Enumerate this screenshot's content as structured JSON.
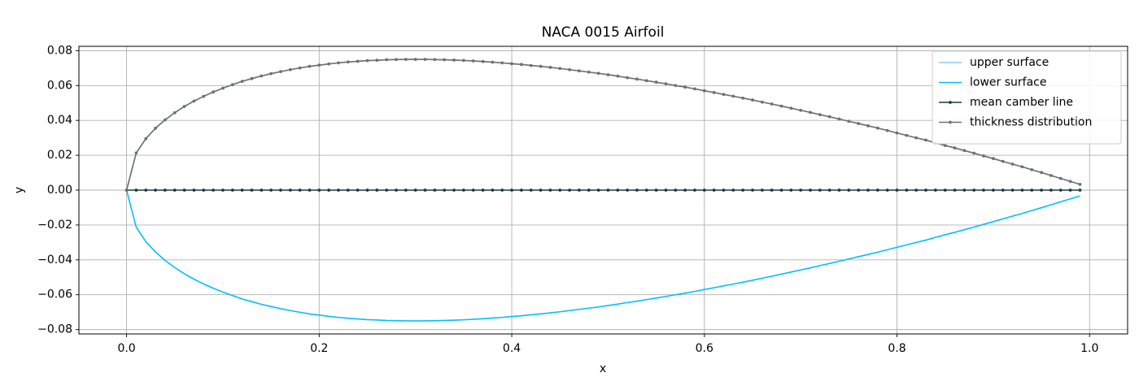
{
  "chart_data": {
    "type": "line",
    "title": "NACA 0015 Airfoil",
    "x_label": "x",
    "y_label": "y",
    "x": [
      0,
      0.01,
      0.02,
      0.03,
      0.04,
      0.05,
      0.06,
      0.07,
      0.08,
      0.09,
      0.1,
      0.11,
      0.12,
      0.13,
      0.14,
      0.15,
      0.16,
      0.17,
      0.18,
      0.19,
      0.2,
      0.21,
      0.22,
      0.23,
      0.24,
      0.25,
      0.26,
      0.27,
      0.28,
      0.29,
      0.3,
      0.31,
      0.32,
      0.33,
      0.34,
      0.35,
      0.36,
      0.37,
      0.38,
      0.39,
      0.4,
      0.41,
      0.42,
      0.43,
      0.44,
      0.45,
      0.46,
      0.47,
      0.48,
      0.49,
      0.5,
      0.51,
      0.52,
      0.53,
      0.54,
      0.55,
      0.56,
      0.57,
      0.58,
      0.59,
      0.6,
      0.61,
      0.62,
      0.63,
      0.64,
      0.65,
      0.66,
      0.67,
      0.68,
      0.69,
      0.7,
      0.71,
      0.72,
      0.73,
      0.74,
      0.75,
      0.76,
      0.77,
      0.78,
      0.79,
      0.8,
      0.81,
      0.82,
      0.83,
      0.84,
      0.85,
      0.86,
      0.87,
      0.88,
      0.89,
      0.9,
      0.91,
      0.92,
      0.93,
      0.94,
      0.95,
      0.96,
      0.97,
      0.98,
      0.99
    ],
    "series": [
      {
        "name": "upper surface",
        "color": "#87cefa",
        "marker": false,
        "values": [
          0,
          0.0213,
          0.0295,
          0.0355,
          0.0403,
          0.0444,
          0.048,
          0.0511,
          0.0538,
          0.0563,
          0.0585,
          0.0605,
          0.0624,
          0.064,
          0.0655,
          0.0668,
          0.068,
          0.0691,
          0.0701,
          0.071,
          0.0717,
          0.0724,
          0.073,
          0.0735,
          0.0739,
          0.0743,
          0.0745,
          0.0748,
          0.0749,
          0.075,
          0.075,
          0.075,
          0.0749,
          0.0748,
          0.0746,
          0.0744,
          0.0741,
          0.0738,
          0.0734,
          0.073,
          0.0725,
          0.0721,
          0.0715,
          0.071,
          0.0704,
          0.0698,
          0.0691,
          0.0684,
          0.0677,
          0.067,
          0.0662,
          0.0654,
          0.0645,
          0.0637,
          0.0628,
          0.0619,
          0.061,
          0.06,
          0.0591,
          0.0581,
          0.057,
          0.056,
          0.0549,
          0.0539,
          0.0528,
          0.0517,
          0.0505,
          0.0494,
          0.0482,
          0.047,
          0.0458,
          0.0446,
          0.0433,
          0.0421,
          0.0408,
          0.0395,
          0.0382,
          0.0369,
          0.0356,
          0.0342,
          0.0328,
          0.0314,
          0.03,
          0.0287,
          0.0271,
          0.0256,
          0.0242,
          0.0227,
          0.0212,
          0.0196,
          0.0181,
          0.0165,
          0.0149,
          0.0134,
          0.0117,
          0.0101,
          0.0084,
          0.0067,
          0.005,
          0.0033
        ]
      },
      {
        "name": "lower surface",
        "color": "#00bfff",
        "marker": false,
        "values": [
          0,
          -0.0213,
          -0.0295,
          -0.0355,
          -0.0403,
          -0.0444,
          -0.048,
          -0.0511,
          -0.0538,
          -0.0563,
          -0.0585,
          -0.0605,
          -0.0624,
          -0.064,
          -0.0655,
          -0.0668,
          -0.068,
          -0.0691,
          -0.0701,
          -0.071,
          -0.0717,
          -0.0724,
          -0.073,
          -0.0735,
          -0.0739,
          -0.0743,
          -0.0745,
          -0.0748,
          -0.0749,
          -0.075,
          -0.075,
          -0.075,
          -0.0749,
          -0.0748,
          -0.0746,
          -0.0744,
          -0.0741,
          -0.0738,
          -0.0734,
          -0.073,
          -0.0725,
          -0.0721,
          -0.0715,
          -0.071,
          -0.0704,
          -0.0698,
          -0.0691,
          -0.0684,
          -0.0677,
          -0.067,
          -0.0662,
          -0.0654,
          -0.0645,
          -0.0637,
          -0.0628,
          -0.0619,
          -0.061,
          -0.06,
          -0.0591,
          -0.0581,
          -0.057,
          -0.056,
          -0.0549,
          -0.0539,
          -0.0528,
          -0.0517,
          -0.0505,
          -0.0494,
          -0.0482,
          -0.047,
          -0.0458,
          -0.0446,
          -0.0433,
          -0.0421,
          -0.0408,
          -0.0395,
          -0.0382,
          -0.0369,
          -0.0356,
          -0.0342,
          -0.0328,
          -0.0314,
          -0.03,
          -0.0287,
          -0.0271,
          -0.0256,
          -0.0242,
          -0.0227,
          -0.0212,
          -0.0196,
          -0.0181,
          -0.0165,
          -0.0149,
          -0.0134,
          -0.0117,
          -0.0101,
          -0.0084,
          -0.0067,
          -0.005,
          -0.0033
        ]
      },
      {
        "name": "mean camber line",
        "color": "#1c3a42",
        "marker": true,
        "values": [
          0,
          0,
          0,
          0,
          0,
          0,
          0,
          0,
          0,
          0,
          0,
          0,
          0,
          0,
          0,
          0,
          0,
          0,
          0,
          0,
          0,
          0,
          0,
          0,
          0,
          0,
          0,
          0,
          0,
          0,
          0,
          0,
          0,
          0,
          0,
          0,
          0,
          0,
          0,
          0,
          0,
          0,
          0,
          0,
          0,
          0,
          0,
          0,
          0,
          0,
          0,
          0,
          0,
          0,
          0,
          0,
          0,
          0,
          0,
          0,
          0,
          0,
          0,
          0,
          0,
          0,
          0,
          0,
          0,
          0,
          0,
          0,
          0,
          0,
          0,
          0,
          0,
          0,
          0,
          0,
          0,
          0,
          0,
          0,
          0,
          0,
          0,
          0,
          0,
          0,
          0,
          0,
          0,
          0,
          0,
          0,
          0,
          0,
          0,
          0
        ]
      },
      {
        "name": "thickness distribution",
        "color": "#707070",
        "marker": true,
        "values": [
          0,
          0.0213,
          0.0295,
          0.0355,
          0.0403,
          0.0444,
          0.048,
          0.0511,
          0.0538,
          0.0563,
          0.0585,
          0.0605,
          0.0624,
          0.064,
          0.0655,
          0.0668,
          0.068,
          0.0691,
          0.0701,
          0.071,
          0.0717,
          0.0724,
          0.073,
          0.0735,
          0.0739,
          0.0743,
          0.0745,
          0.0748,
          0.0749,
          0.075,
          0.075,
          0.075,
          0.0749,
          0.0748,
          0.0746,
          0.0744,
          0.0741,
          0.0738,
          0.0734,
          0.073,
          0.0725,
          0.0721,
          0.0715,
          0.071,
          0.0704,
          0.0698,
          0.0691,
          0.0684,
          0.0677,
          0.067,
          0.0662,
          0.0654,
          0.0645,
          0.0637,
          0.0628,
          0.0619,
          0.061,
          0.06,
          0.0591,
          0.0581,
          0.057,
          0.056,
          0.0549,
          0.0539,
          0.0528,
          0.0517,
          0.0505,
          0.0494,
          0.0482,
          0.047,
          0.0458,
          0.0446,
          0.0433,
          0.0421,
          0.0408,
          0.0395,
          0.0382,
          0.0369,
          0.0356,
          0.0342,
          0.0328,
          0.0314,
          0.03,
          0.0287,
          0.0271,
          0.0256,
          0.0242,
          0.0227,
          0.0212,
          0.0196,
          0.0181,
          0.0165,
          0.0149,
          0.0134,
          0.0117,
          0.0101,
          0.0084,
          0.0067,
          0.005,
          0.0033
        ]
      }
    ],
    "xlim": [
      -0.0495,
      1.0395
    ],
    "xticks": [
      {
        "value": 0,
        "label": "0.0"
      },
      {
        "value": 0.2,
        "label": "0.2"
      },
      {
        "value": 0.4,
        "label": "0.4"
      },
      {
        "value": 0.6,
        "label": "0.6"
      },
      {
        "value": 0.8,
        "label": "0.8"
      },
      {
        "value": 1,
        "label": "1.0"
      }
    ],
    "ylim": [
      -0.0825,
      0.0825
    ],
    "yticks": [
      {
        "value": -0.08,
        "label": "−0.08"
      },
      {
        "value": -0.06,
        "label": "−0.06"
      },
      {
        "value": -0.04,
        "label": "−0.04"
      },
      {
        "value": -0.02,
        "label": "−0.02"
      },
      {
        "value": 0,
        "label": "0.00"
      },
      {
        "value": 0.02,
        "label": "0.02"
      },
      {
        "value": 0.04,
        "label": "0.04"
      },
      {
        "value": 0.06,
        "label": "0.06"
      },
      {
        "value": 0.08,
        "label": "0.08"
      }
    ],
    "grid": true,
    "legend": "upper right"
  }
}
